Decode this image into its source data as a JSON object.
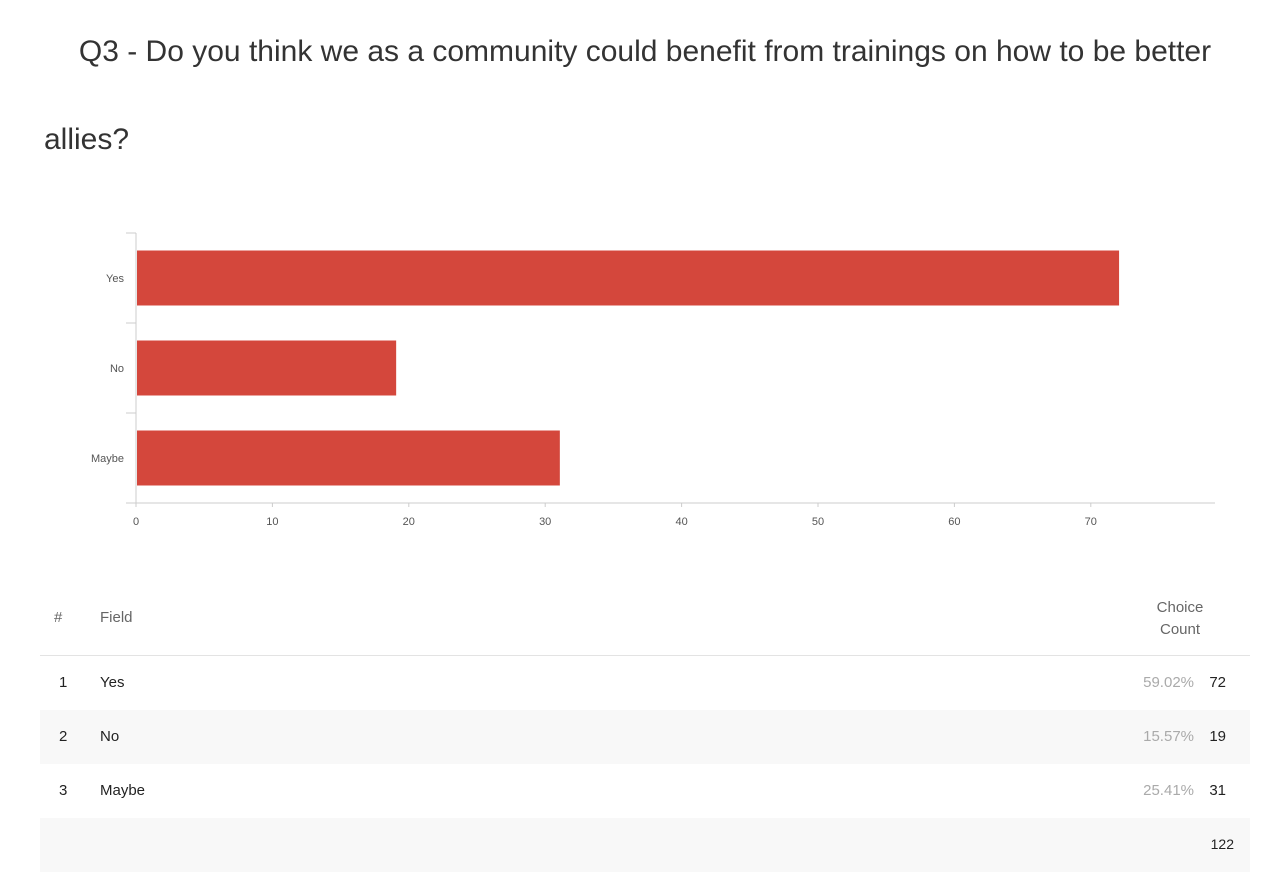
{
  "question": {
    "title_line1": "Q3 - Do you think we as a community could benefit from trainings on how to be better",
    "title_line2": "allies?"
  },
  "colors": {
    "bar": "#d4473c",
    "axis": "#cccccc",
    "tick_label": "#555555"
  },
  "chart_data": {
    "type": "bar",
    "orientation": "horizontal",
    "categories": [
      "Yes",
      "No",
      "Maybe"
    ],
    "values": [
      72,
      19,
      31
    ],
    "xticks": [
      "0",
      "10",
      "20",
      "30",
      "40",
      "50",
      "60",
      "70"
    ],
    "xlim": [
      0,
      79
    ],
    "grid": false,
    "legend": "none"
  },
  "table": {
    "headers": {
      "num": "#",
      "field": "Field",
      "count_line1": "Choice",
      "count_line2": "Count"
    },
    "rows": [
      {
        "num": "1",
        "field": "Yes",
        "percent": "59.02%",
        "count": "72"
      },
      {
        "num": "2",
        "field": "No",
        "percent": "15.57%",
        "count": "19"
      },
      {
        "num": "3",
        "field": "Maybe",
        "percent": "25.41%",
        "count": "31"
      }
    ],
    "total": "122"
  }
}
